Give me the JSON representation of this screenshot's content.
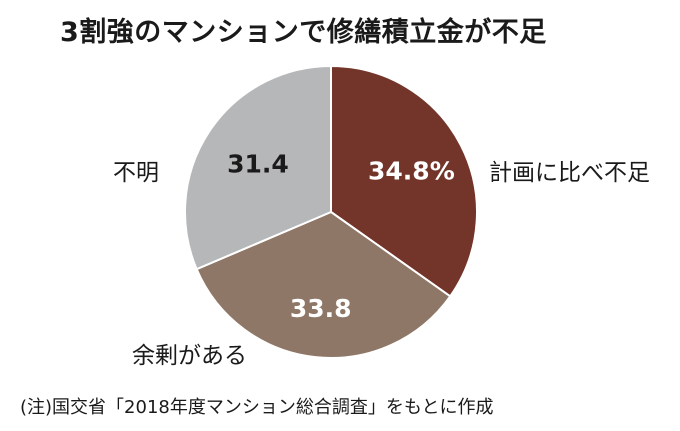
{
  "title": "3割強のマンションで修繕積立金が不足",
  "note": "(注)国交省「2018年度マンション総合調査」をもとに作成",
  "chart_data": {
    "type": "pie",
    "slices": [
      {
        "label": "計画に比べ不足",
        "value": 34.8,
        "value_label": "34.8%",
        "color": "#73352a",
        "value_text_color": "#ffffff"
      },
      {
        "label": "余剰がある",
        "value": 33.8,
        "value_label": "33.8",
        "color": "#8e7767",
        "value_text_color": "#ffffff"
      },
      {
        "label": "不明",
        "value": 31.4,
        "value_label": "31.4",
        "color": "#b6b7b9",
        "value_text_color": "#1a1a1a"
      }
    ],
    "start_angle_deg": 0,
    "direction": "clockwise"
  }
}
